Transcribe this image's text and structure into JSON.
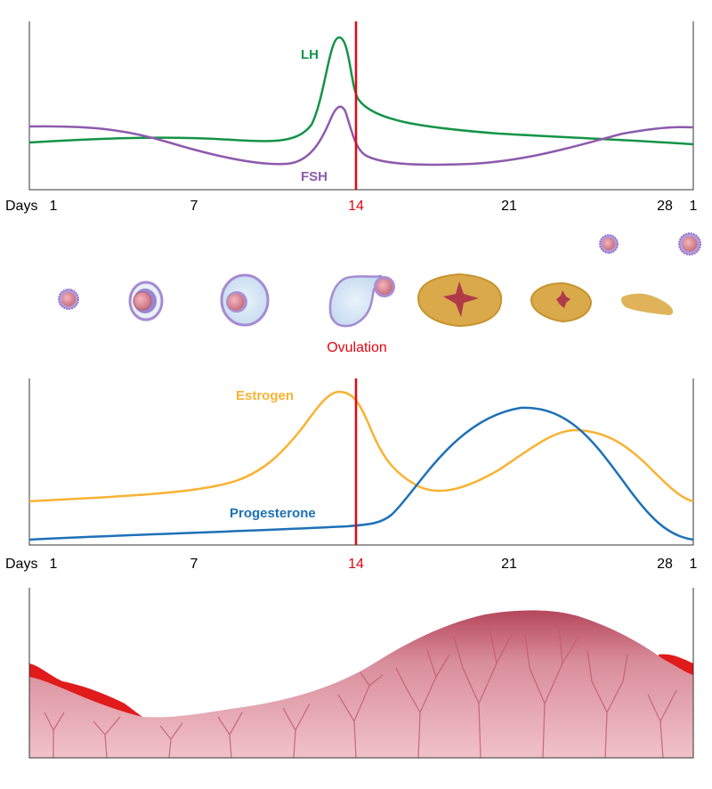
{
  "top_chart": {
    "lh_label": "LH",
    "fsh_label": "FSH",
    "axis": {
      "days_label": "Days",
      "ticks": [
        "1",
        "7",
        "14",
        "21",
        "28",
        "1"
      ]
    }
  },
  "ovaries": {
    "ovulation_label": "Ovulation"
  },
  "bottom_chart": {
    "estrogen_label": "Estrogen",
    "progesterone_label": "Progesterone",
    "axis": {
      "days_label": "Days",
      "ticks": [
        "1",
        "7",
        "14",
        "21",
        "28",
        "1"
      ]
    }
  },
  "colors": {
    "lh": "#139447",
    "fsh": "#8e5aad",
    "estrogen": "#f9b233",
    "progesterone": "#1d71b8",
    "ovulation_line": "#e30613",
    "endometrium": "#d88a98"
  }
}
